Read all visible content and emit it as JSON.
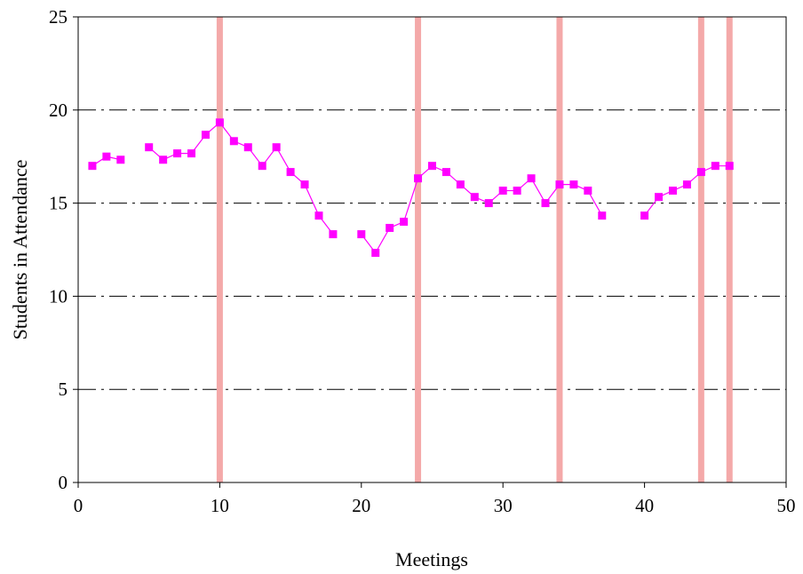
{
  "chart_data": {
    "type": "line",
    "title": "",
    "xlabel": "Meetings",
    "ylabel": "Students in Attendance",
    "xlim": [
      0,
      50
    ],
    "ylim": [
      0,
      25
    ],
    "x_ticks": [
      0,
      10,
      20,
      30,
      40,
      50
    ],
    "y_ticks": [
      0,
      5,
      10,
      15,
      20,
      25
    ],
    "y_tick_labels": [
      "0",
      "5",
      "10",
      "15",
      "20",
      "25"
    ],
    "x_tick_labels": [
      "0",
      "10",
      "20",
      "30",
      "40",
      "50"
    ],
    "grid": "horizontal dash-dot",
    "legend": "none",
    "colors": {
      "series": "#ff00ff",
      "vertical_markers": "#f4a9a9",
      "grid": "#000000"
    },
    "series": [
      {
        "points": [
          [
            1,
            17
          ],
          [
            2,
            17.5
          ],
          [
            3,
            17.33
          ],
          null,
          [
            5,
            18
          ],
          [
            6,
            17.33
          ],
          [
            7,
            17.67
          ],
          [
            8,
            17.67
          ],
          [
            9,
            18.67
          ],
          [
            10,
            19.33
          ],
          [
            11,
            18.33
          ],
          [
            12,
            18
          ],
          [
            13,
            17
          ],
          [
            14,
            18
          ],
          [
            15,
            16.67
          ],
          [
            16,
            16
          ],
          [
            17,
            14.33
          ],
          [
            18,
            13.33
          ],
          null,
          [
            20,
            13.33
          ],
          [
            21,
            12.33
          ],
          [
            22,
            13.67
          ],
          [
            23,
            14
          ],
          [
            24,
            16.33
          ],
          [
            25,
            17
          ],
          [
            26,
            16.67
          ],
          [
            27,
            16
          ],
          [
            28,
            15.33
          ],
          [
            29,
            15
          ],
          [
            30,
            15.67
          ],
          [
            31,
            15.67
          ],
          [
            32,
            16.33
          ],
          [
            33,
            15
          ],
          [
            34,
            16
          ],
          [
            35,
            16
          ],
          [
            36,
            15.67
          ],
          [
            37,
            14.33
          ],
          null,
          [
            40,
            14.33
          ],
          [
            41,
            15.33
          ],
          [
            42,
            15.67
          ],
          [
            43,
            16
          ],
          [
            44,
            16.67
          ],
          [
            45,
            17
          ],
          [
            46,
            17
          ]
        ]
      }
    ],
    "vertical_markers": [
      10,
      24,
      34,
      44,
      46
    ]
  }
}
